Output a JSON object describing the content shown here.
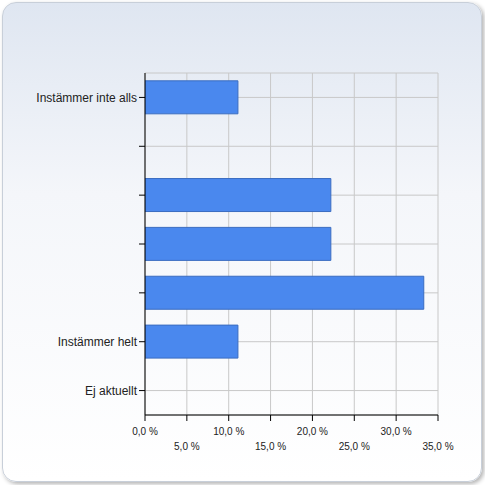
{
  "chart_data": {
    "type": "bar",
    "orientation": "horizontal",
    "categories": [
      "Instämmer inte alls",
      null,
      null,
      null,
      null,
      "Instämmer helt",
      "Ej aktuellt"
    ],
    "values": [
      11.1,
      0,
      22.2,
      22.2,
      33.3,
      11.1,
      0
    ],
    "color": "#4a88ee",
    "xlim": [
      0,
      35
    ],
    "xticks": [
      {
        "value": 0,
        "label": "0,0 %"
      },
      {
        "value": 5,
        "label": "5,0 %"
      },
      {
        "value": 10,
        "label": "10,0 %"
      },
      {
        "value": 15,
        "label": "15,0 %"
      },
      {
        "value": 20,
        "label": "20,0 %"
      },
      {
        "value": 25,
        "label": "25,0 %"
      },
      {
        "value": 30,
        "label": "30,0 %"
      },
      {
        "value": 35,
        "label": "35,0 %"
      }
    ],
    "grid": true
  }
}
